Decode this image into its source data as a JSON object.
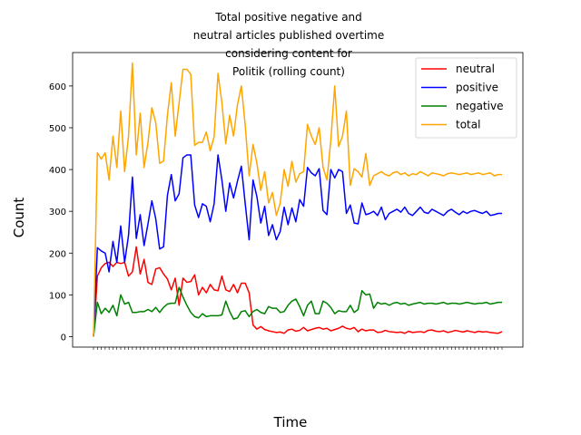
{
  "chart_data": {
    "type": "line",
    "title_lines": [
      "Total positive negative and",
      "neutral articles published overtime",
      "considering content for",
      "Politik (rolling count)"
    ],
    "xlabel": "Time",
    "ylabel": "Count",
    "ylim": [
      -25,
      680
    ],
    "yticks": [
      0,
      100,
      200,
      300,
      400,
      500,
      600
    ],
    "grid": false,
    "legend_position": "upper-right",
    "x_count": 106,
    "series": [
      {
        "name": "neutral",
        "color": "#ff0000",
        "values": [
          0,
          145,
          165,
          175,
          178,
          168,
          178,
          175,
          178,
          145,
          155,
          215,
          150,
          185,
          130,
          125,
          162,
          165,
          150,
          138,
          112,
          140,
          75,
          140,
          130,
          132,
          148,
          100,
          118,
          105,
          125,
          112,
          110,
          145,
          112,
          108,
          125,
          105,
          128,
          128,
          105,
          28,
          18,
          24,
          17,
          14,
          12,
          10,
          11,
          8,
          16,
          18,
          13,
          15,
          22,
          14,
          17,
          20,
          22,
          18,
          20,
          14,
          17,
          20,
          25,
          20,
          18,
          22,
          12,
          18,
          14,
          16,
          16,
          10,
          11,
          15,
          12,
          11,
          10,
          11,
          8,
          13,
          10,
          11,
          12,
          10,
          15,
          16,
          13,
          12,
          14,
          10,
          12,
          15,
          13,
          11,
          14,
          12,
          10,
          13,
          11,
          12,
          10,
          9,
          8,
          12
        ]
      },
      {
        "name": "positive",
        "color": "#0000ff",
        "values": [
          0,
          213,
          205,
          200,
          155,
          228,
          178,
          265,
          178,
          242,
          382,
          235,
          292,
          218,
          270,
          325,
          282,
          210,
          215,
          338,
          388,
          325,
          342,
          428,
          435,
          435,
          315,
          285,
          318,
          312,
          275,
          318,
          435,
          375,
          300,
          368,
          332,
          372,
          408,
          318,
          232,
          375,
          335,
          272,
          312,
          242,
          268,
          232,
          252,
          310,
          268,
          308,
          275,
          328,
          312,
          405,
          392,
          385,
          402,
          302,
          292,
          400,
          380,
          400,
          395,
          295,
          315,
          272,
          270,
          320,
          292,
          295,
          300,
          290,
          310,
          280,
          295,
          300,
          305,
          298,
          310,
          295,
          290,
          300,
          310,
          298,
          295,
          305,
          300,
          295,
          290,
          300,
          305,
          298,
          292,
          300,
          295,
          300,
          302,
          298,
          295,
          300,
          290,
          292,
          295,
          295
        ]
      },
      {
        "name": "negative",
        "color": "#008000",
        "values": [
          0,
          82,
          55,
          68,
          58,
          75,
          50,
          100,
          78,
          82,
          58,
          58,
          60,
          60,
          65,
          60,
          70,
          58,
          70,
          78,
          80,
          80,
          118,
          95,
          75,
          58,
          48,
          45,
          55,
          48,
          50,
          50,
          50,
          52,
          85,
          60,
          42,
          45,
          60,
          62,
          48,
          60,
          65,
          58,
          55,
          72,
          68,
          68,
          58,
          60,
          75,
          85,
          90,
          72,
          50,
          75,
          85,
          55,
          55,
          85,
          80,
          70,
          55,
          62,
          60,
          60,
          75,
          58,
          65,
          110,
          100,
          102,
          68,
          82,
          78,
          80,
          75,
          80,
          82,
          78,
          80,
          75,
          78,
          80,
          82,
          78,
          80,
          80,
          78,
          80,
          82,
          78,
          80,
          80,
          78,
          80,
          82,
          80,
          78,
          80,
          80,
          82,
          78,
          80,
          82,
          82
        ]
      },
      {
        "name": "total",
        "color": "#ffa500",
        "values": [
          0,
          440,
          425,
          440,
          375,
          480,
          405,
          540,
          395,
          480,
          655,
          435,
          535,
          405,
          465,
          548,
          512,
          415,
          420,
          530,
          608,
          480,
          560,
          640,
          640,
          628,
          458,
          465,
          465,
          490,
          445,
          478,
          630,
          560,
          462,
          530,
          480,
          555,
          600,
          505,
          385,
          460,
          415,
          350,
          395,
          320,
          345,
          290,
          320,
          400,
          360,
          420,
          370,
          390,
          395,
          508,
          480,
          460,
          500,
          405,
          375,
          470,
          600,
          455,
          480,
          540,
          362,
          402,
          395,
          382,
          438,
          362,
          385,
          390,
          395,
          388,
          385,
          392,
          395,
          388,
          392,
          385,
          390,
          388,
          395,
          390,
          385,
          392,
          390,
          388,
          385,
          390,
          392,
          390,
          388,
          390,
          392,
          388,
          390,
          392,
          388,
          390,
          392,
          385,
          388,
          388
        ]
      }
    ]
  }
}
